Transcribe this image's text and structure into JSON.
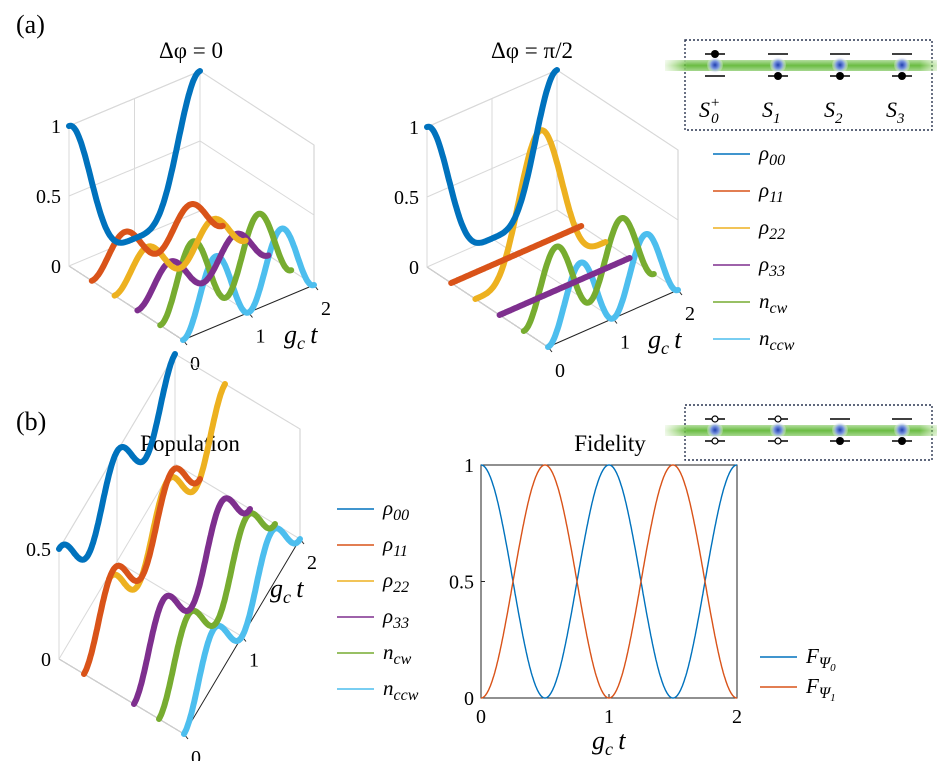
{
  "figure": {
    "panel_a": "(a)",
    "panel_b": "(b)",
    "title_a1": "Δφ = 0",
    "title_a2": "Δφ = π/2",
    "title_b1": "Population",
    "title_b2": "Fidelity",
    "time_axis_label": "g_c t"
  },
  "schematic_a": {
    "labels": [
      "S0+",
      "S1",
      "S2",
      "S3"
    ],
    "atom_states": [
      "upper",
      "lower",
      "lower",
      "lower"
    ]
  },
  "schematic_b": {
    "atom_states": [
      "split",
      "split",
      "lower",
      "lower"
    ]
  },
  "legend_a": [
    {
      "key": "rho00",
      "label": "ρ00",
      "color": "#0072BD"
    },
    {
      "key": "rho11",
      "label": "ρ11",
      "color": "#D95319"
    },
    {
      "key": "rho22",
      "label": "ρ22",
      "color": "#EDB120"
    },
    {
      "key": "rho33",
      "label": "ρ33",
      "color": "#7E2F8E"
    },
    {
      "key": "ncw",
      "label": "ncw",
      "color": "#77AC30"
    },
    {
      "key": "nccw",
      "label": "nccw",
      "color": "#4DBEEE"
    }
  ],
  "legend_b1": [
    {
      "key": "rho00",
      "label": "ρ00",
      "color": "#0072BD"
    },
    {
      "key": "rho11",
      "label": "ρ11",
      "color": "#D95319"
    },
    {
      "key": "rho22",
      "label": "ρ22",
      "color": "#EDB120"
    },
    {
      "key": "rho33",
      "label": "ρ33",
      "color": "#7E2F8E"
    },
    {
      "key": "ncw",
      "label": "ncw",
      "color": "#77AC30"
    },
    {
      "key": "nccw",
      "label": "nccw",
      "color": "#4DBEEE"
    }
  ],
  "legend_b2": [
    {
      "key": "F0",
      "label": "FΨ0",
      "color": "#0072BD"
    },
    {
      "key": "F1",
      "label": "FΨ1",
      "color": "#D95319"
    }
  ],
  "chart_data": [
    {
      "id": "a1",
      "type": "line",
      "projection": "3d-waterfall",
      "title": "Δφ = 0",
      "xlabel": "g_c t",
      "zlim": [
        0,
        1
      ],
      "tlim": [
        0,
        2
      ],
      "zticks": [
        0,
        0.5,
        1
      ],
      "tticks": [
        0,
        1,
        2
      ],
      "series": [
        {
          "name": "ρ00",
          "expr": "c4",
          "color": "#0072BD"
        },
        {
          "name": "ρ11",
          "expr": "0.25s2",
          "color": "#D95319"
        },
        {
          "name": "ρ22",
          "expr": "0.25s2",
          "color": "#EDB120"
        },
        {
          "name": "ρ33",
          "expr": "0.25s2",
          "color": "#7E2F8E"
        },
        {
          "name": "ncw",
          "expr": "0.5cs",
          "color": "#77AC30"
        },
        {
          "name": "nccw",
          "expr": "0.5cs",
          "color": "#4DBEEE"
        }
      ]
    },
    {
      "id": "a2",
      "type": "line",
      "projection": "3d-waterfall",
      "title": "Δφ = π/2",
      "xlabel": "g_c t",
      "zlim": [
        0,
        1
      ],
      "tlim": [
        0,
        2
      ],
      "zticks": [
        0,
        0.5,
        1
      ],
      "tticks": [
        0,
        1,
        2
      ],
      "series": [
        {
          "name": "ρ00",
          "expr": "c4",
          "color": "#0072BD"
        },
        {
          "name": "ρ11",
          "expr": "zero",
          "color": "#D95319"
        },
        {
          "name": "ρ22",
          "expr": "s4",
          "color": "#EDB120"
        },
        {
          "name": "ρ33",
          "expr": "zero",
          "color": "#7E2F8E"
        },
        {
          "name": "ncw",
          "expr": "0.5cs",
          "color": "#77AC30"
        },
        {
          "name": "nccw",
          "expr": "0.5cs",
          "color": "#4DBEEE"
        }
      ]
    },
    {
      "id": "b1",
      "type": "line",
      "projection": "3d-waterfall",
      "title": "Population",
      "xlabel": "g_c t",
      "zlim": [
        0,
        0.5
      ],
      "tlim": [
        0,
        2
      ],
      "zticks": [
        0,
        0.5
      ],
      "tticks": [
        0,
        1,
        2
      ],
      "series": [
        {
          "name": "ρ00",
          "expr": "popB0",
          "color": "#0072BD"
        },
        {
          "name": "ρ11",
          "expr": "popB1",
          "color": "#D95319"
        },
        {
          "name": "ρ22",
          "expr": "popB0",
          "color": "#EDB120"
        },
        {
          "name": "ρ33",
          "expr": "popB1",
          "color": "#7E2F8E"
        },
        {
          "name": "ncw",
          "expr": "0.25cs",
          "color": "#77AC30"
        },
        {
          "name": "nccw",
          "expr": "0.25cs",
          "color": "#4DBEEE"
        }
      ]
    },
    {
      "id": "b2",
      "type": "line",
      "title": "Fidelity",
      "xlabel": "g_c t",
      "xlim": [
        0,
        2
      ],
      "ylim": [
        0,
        1
      ],
      "xticks": [
        0,
        1,
        2
      ],
      "yticks": [
        0,
        0.5,
        1
      ],
      "series": [
        {
          "name": "FΨ0",
          "expr": "c2pi",
          "color": "#0072BD"
        },
        {
          "name": "FΨ1",
          "expr": "s2pi",
          "color": "#D95319"
        }
      ]
    }
  ]
}
